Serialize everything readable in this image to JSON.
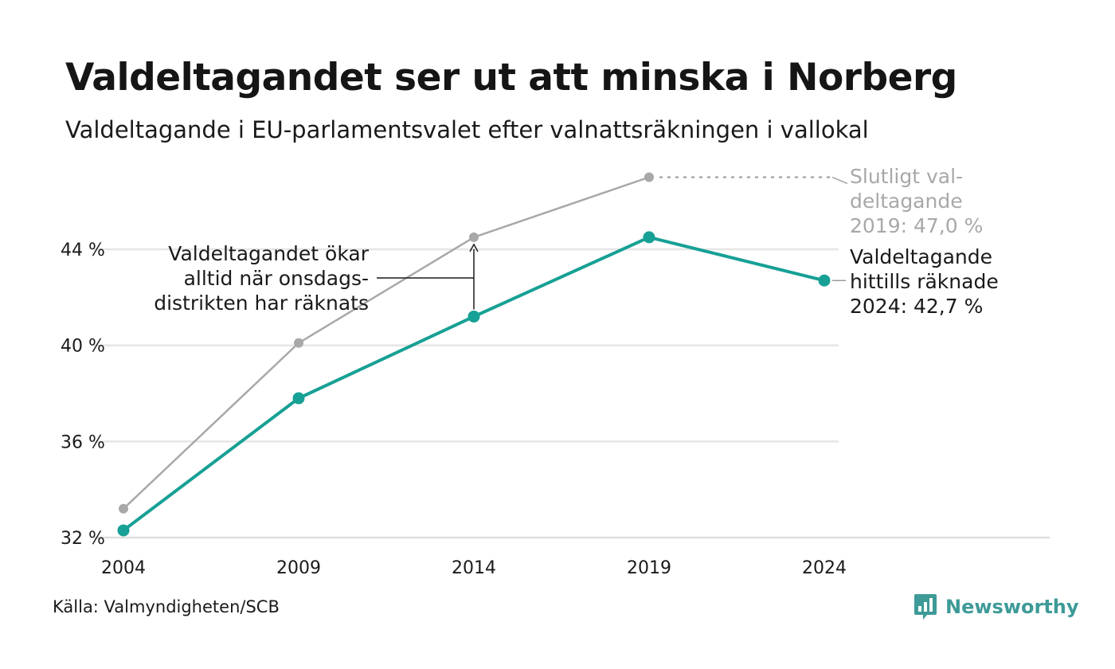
{
  "header": {
    "title": "Valdeltagandet ser ut att minska i Norberg",
    "subtitle": "Valdeltagande i EU-parlamentsvalet efter valnattsräkningen i vallokal"
  },
  "chart_data": {
    "type": "line",
    "x": [
      2004,
      2009,
      2014,
      2019,
      2024
    ],
    "x_tick_labels": [
      "2004",
      "2009",
      "2014",
      "2019",
      "2024"
    ],
    "y_ticks": [
      32,
      36,
      40,
      44
    ],
    "y_tick_labels": [
      "32 %",
      "36 %",
      "40 %",
      "44 %"
    ],
    "ylim": [
      32,
      47.5
    ],
    "grid": "horizontal",
    "series": [
      {
        "color": "#a8a8a8",
        "values": [
          33.2,
          40.1,
          44.5,
          47.0,
          null
        ]
      },
      {
        "color": "#17a095",
        "values": [
          32.3,
          37.8,
          41.2,
          44.5,
          42.7
        ]
      }
    ],
    "annotations": {
      "final_lines": [
        "Slutligt val-",
        "deltagande",
        "2019: 47,0 %"
      ],
      "current_lines": [
        "Valdeltagande",
        "hittills räknade",
        "2024: 42,7 %"
      ],
      "note_lines": [
        "Valdeltagandet ökar",
        "alltid när onsdags-",
        "distrikten har räknats"
      ]
    }
  },
  "footer": {
    "source": "Källa: Valmyndigheten/SCB",
    "brand": "Newsworthy",
    "brand_icon": "bar-chart-speech-bubble-icon"
  }
}
